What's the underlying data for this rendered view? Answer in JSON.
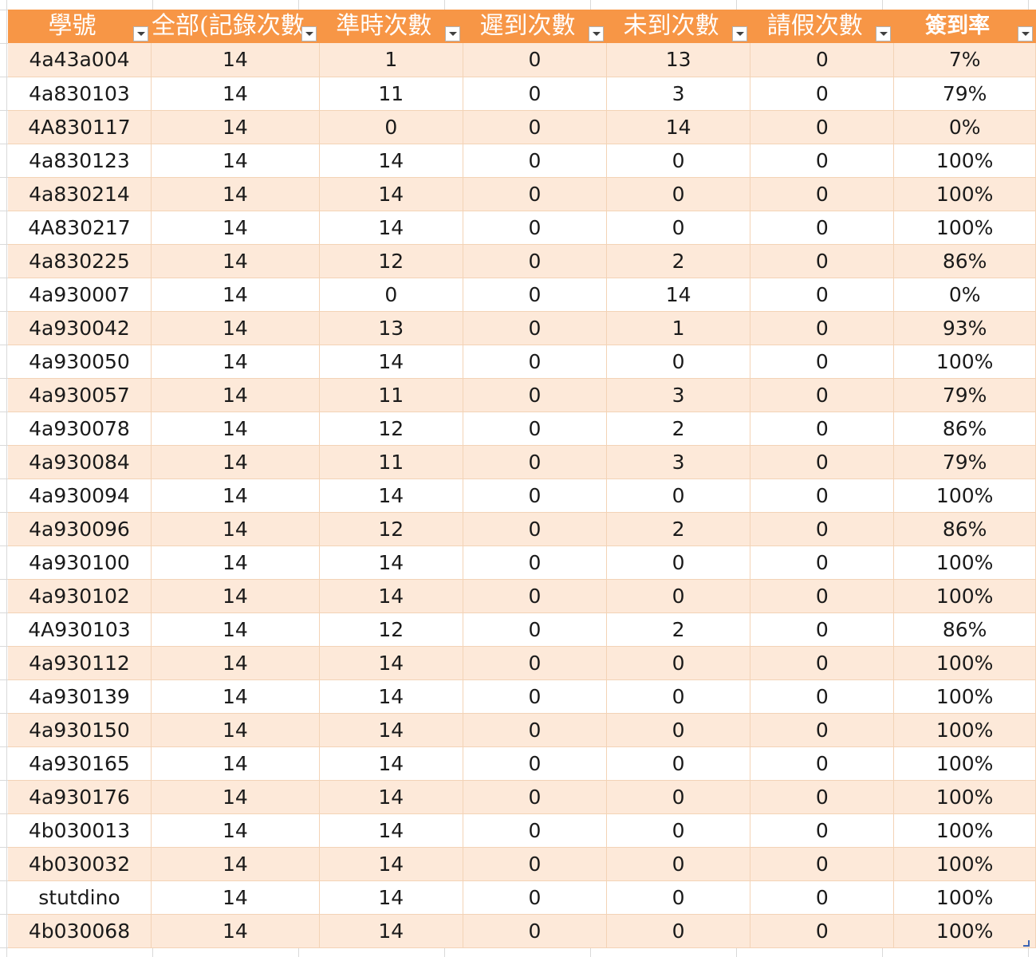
{
  "table": {
    "headers": [
      "學號",
      "全部(記錄次數",
      "準時次數",
      "遲到次數",
      "未到次數",
      "請假次數",
      "簽到率"
    ],
    "rows": [
      [
        "4a43a004",
        "14",
        "1",
        "0",
        "13",
        "0",
        "7%"
      ],
      [
        "4a830103",
        "14",
        "11",
        "0",
        "3",
        "0",
        "79%"
      ],
      [
        "4A830117",
        "14",
        "0",
        "0",
        "14",
        "0",
        "0%"
      ],
      [
        "4a830123",
        "14",
        "14",
        "0",
        "0",
        "0",
        "100%"
      ],
      [
        "4a830214",
        "14",
        "14",
        "0",
        "0",
        "0",
        "100%"
      ],
      [
        "4A830217",
        "14",
        "14",
        "0",
        "0",
        "0",
        "100%"
      ],
      [
        "4a830225",
        "14",
        "12",
        "0",
        "2",
        "0",
        "86%"
      ],
      [
        "4a930007",
        "14",
        "0",
        "0",
        "14",
        "0",
        "0%"
      ],
      [
        "4a930042",
        "14",
        "13",
        "0",
        "1",
        "0",
        "93%"
      ],
      [
        "4a930050",
        "14",
        "14",
        "0",
        "0",
        "0",
        "100%"
      ],
      [
        "4a930057",
        "14",
        "11",
        "0",
        "3",
        "0",
        "79%"
      ],
      [
        "4a930078",
        "14",
        "12",
        "0",
        "2",
        "0",
        "86%"
      ],
      [
        "4a930084",
        "14",
        "11",
        "0",
        "3",
        "0",
        "79%"
      ],
      [
        "4a930094",
        "14",
        "14",
        "0",
        "0",
        "0",
        "100%"
      ],
      [
        "4a930096",
        "14",
        "12",
        "0",
        "2",
        "0",
        "86%"
      ],
      [
        "4a930100",
        "14",
        "14",
        "0",
        "0",
        "0",
        "100%"
      ],
      [
        "4a930102",
        "14",
        "14",
        "0",
        "0",
        "0",
        "100%"
      ],
      [
        "4A930103",
        "14",
        "12",
        "0",
        "2",
        "0",
        "86%"
      ],
      [
        "4a930112",
        "14",
        "14",
        "0",
        "0",
        "0",
        "100%"
      ],
      [
        "4a930139",
        "14",
        "14",
        "0",
        "0",
        "0",
        "100%"
      ],
      [
        "4a930150",
        "14",
        "14",
        "0",
        "0",
        "0",
        "100%"
      ],
      [
        "4a930165",
        "14",
        "14",
        "0",
        "0",
        "0",
        "100%"
      ],
      [
        "4a930176",
        "14",
        "14",
        "0",
        "0",
        "0",
        "100%"
      ],
      [
        "4b030013",
        "14",
        "14",
        "0",
        "0",
        "0",
        "100%"
      ],
      [
        "4b030032",
        "14",
        "14",
        "0",
        "0",
        "0",
        "100%"
      ],
      [
        "stutdino",
        "14",
        "14",
        "0",
        "0",
        "0",
        "100%"
      ],
      [
        "4b030068",
        "14",
        "14",
        "0",
        "0",
        "0",
        "100%"
      ]
    ]
  },
  "colors": {
    "header_bg": "#f79646",
    "header_text": "#ffffff",
    "band_row_bg": "#fde9d9",
    "plain_row_bg": "#ffffff"
  },
  "icons": {
    "filter": "filter-dropdown-icon",
    "resize": "table-resize-handle-icon"
  }
}
